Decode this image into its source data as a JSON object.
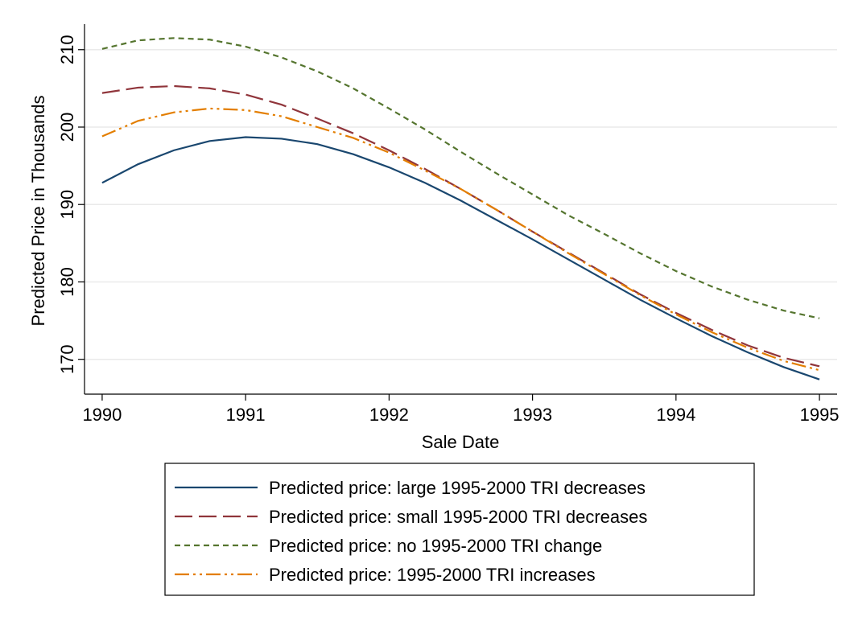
{
  "chart_data": {
    "type": "line",
    "x_label": "Sale Date",
    "y_label": "Predicted Price in Thousands",
    "x": [
      1990,
      1990.25,
      1990.5,
      1990.75,
      1991,
      1991.25,
      1991.5,
      1991.75,
      1992,
      1992.25,
      1992.5,
      1992.75,
      1993,
      1993.25,
      1993.5,
      1993.75,
      1994,
      1994.25,
      1994.5,
      1994.75,
      1995
    ],
    "series": [
      {
        "name": "Predicted price: large 1995-2000 TRI decreases",
        "color": "#1a476f",
        "values": [
          192.8,
          195.2,
          197.0,
          198.2,
          198.7,
          198.5,
          197.8,
          196.5,
          194.8,
          192.8,
          190.5,
          188.0,
          185.5,
          182.9,
          180.3,
          177.7,
          175.3,
          173.0,
          170.9,
          169.0,
          167.4
        ]
      },
      {
        "name": "Predicted price: small 1995-2000 TRI decreases",
        "color": "#90353b",
        "values": [
          204.4,
          205.1,
          205.3,
          205.0,
          204.2,
          202.9,
          201.1,
          199.2,
          197.0,
          194.6,
          192.0,
          189.3,
          186.5,
          183.8,
          181.1,
          178.4,
          176.0,
          173.8,
          171.8,
          170.2,
          169.1
        ]
      },
      {
        "name": "Predicted price: no 1995-2000 TRI change",
        "color": "#55752f",
        "values": [
          210.1,
          211.2,
          211.5,
          211.3,
          210.4,
          209.0,
          207.2,
          205.0,
          202.4,
          199.7,
          196.8,
          194.0,
          191.3,
          188.6,
          186.2,
          183.7,
          181.4,
          179.4,
          177.7,
          176.3,
          175.3
        ]
      },
      {
        "name": "Predicted price: 1995-2000 TRI increases",
        "color": "#e37e00",
        "values": [
          198.8,
          200.8,
          201.9,
          202.4,
          202.2,
          201.4,
          200.0,
          198.6,
          196.7,
          194.4,
          192.0,
          189.3,
          186.5,
          183.7,
          181.0,
          178.3,
          175.8,
          173.5,
          171.5,
          169.8,
          168.6
        ]
      }
    ],
    "xlim": [
      1989.877,
      1995.123
    ],
    "xticks": [
      1990,
      1991,
      1992,
      1993,
      1994,
      1995
    ],
    "ylim": [
      165.5,
      213.3
    ],
    "yticks": [
      170,
      180,
      190,
      200,
      210
    ],
    "grid": true,
    "legend": "bottom"
  }
}
